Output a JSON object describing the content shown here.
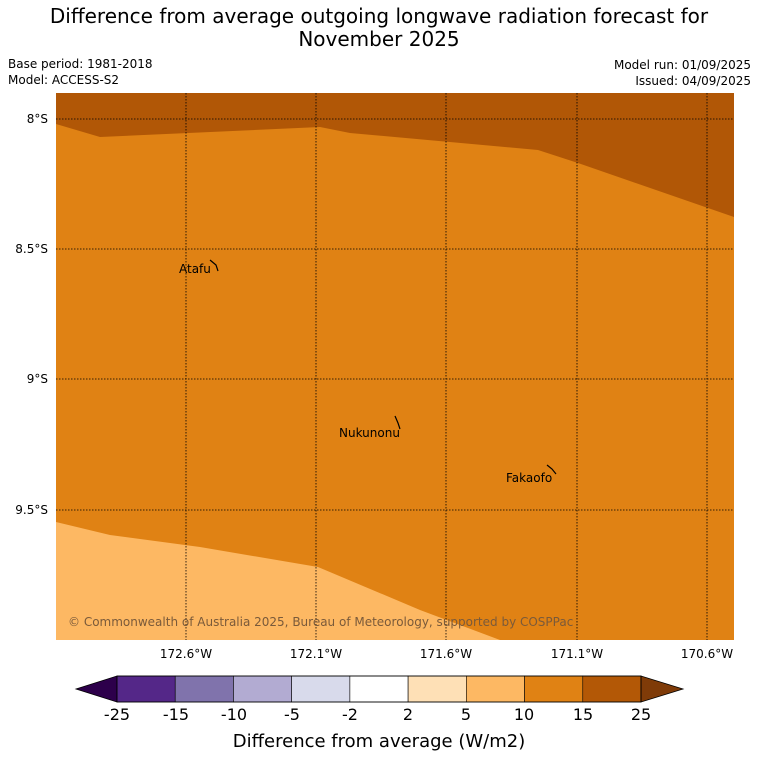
{
  "title_line1": "Difference from average outgoing longwave radiation forecast for",
  "title_line2": "November 2025",
  "meta": {
    "base_period": "Base period: 1981-2018",
    "model": "Model: ACCESS-S2",
    "model_run": "Model run: 01/09/2025",
    "issued": "Issued: 04/09/2025"
  },
  "map": {
    "lat_labels": [
      "8°S",
      "8.5°S",
      "9°S",
      "9.5°S"
    ],
    "lon_labels": [
      "172.6°W",
      "172.1°W",
      "171.6°W",
      "171.1°W",
      "170.6°W"
    ],
    "places": [
      "Atafu",
      "Nukunonu",
      "Fakaofo"
    ],
    "copyright": "© Commonwealth of Australia 2025, Bureau of Meteorology, supported by COSPPac",
    "colors": {
      "band_15_25": "#b15706",
      "band_10_15": "#e08214",
      "band_5_10": "#fdb863"
    }
  },
  "colorbar": {
    "ticks": [
      "-25",
      "-15",
      "-10",
      "-5",
      "-2",
      "2",
      "5",
      "10",
      "15",
      "25"
    ],
    "label": "Difference from average (W/m2)",
    "under_color": "#2d004b",
    "over_color": "#7f3b08",
    "colors": [
      "#542788",
      "#8073ac",
      "#b2abd2",
      "#d8daeb",
      "#ffffff",
      "#fee0b6",
      "#fdb863",
      "#e08214",
      "#b35806"
    ]
  }
}
